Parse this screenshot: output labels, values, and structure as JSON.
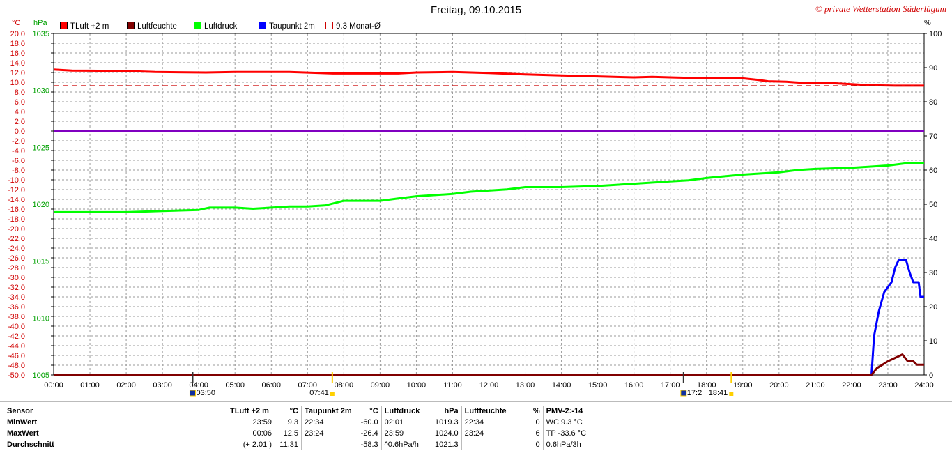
{
  "header": {
    "title": "Freitag, 09.10.2015",
    "copyright": "© private Wetterstation Süderlügum",
    "unit_celsius": "°C",
    "unit_hpa": "hPa",
    "unit_percent": "%"
  },
  "legend": [
    {
      "label": "TLuft +2 m",
      "color": "#ff0000",
      "style": "filled"
    },
    {
      "label": "Luftfeuchte",
      "color": "#800000",
      "style": "filled"
    },
    {
      "label": "Luftdruck",
      "color": "#00ff00",
      "style": "filled"
    },
    {
      "label": "Taupunkt 2m",
      "color": "#0000ff",
      "style": "filled"
    },
    {
      "label": "9.3 Monat-Ø",
      "color": "#cc0000",
      "style": "outline"
    }
  ],
  "chart_data": {
    "type": "line",
    "title": "Freitag, 09.10.2015",
    "grid": true,
    "x_ticks": [
      "00:00",
      "01:00",
      "02:00",
      "03:00",
      "04:00",
      "05:00",
      "06:00",
      "07:00",
      "08:00",
      "09:00",
      "10:00",
      "11:00",
      "12:00",
      "13:00",
      "14:00",
      "15:00",
      "16:00",
      "17:00",
      "18:00",
      "19:00",
      "20:00",
      "21:00",
      "22:00",
      "23:00",
      "24:00"
    ],
    "xlim_hours": [
      0,
      24
    ],
    "axes": {
      "celsius": {
        "unit": "°C",
        "ylim": [
          -50,
          20
        ],
        "ticks": [
          "20.0",
          "18.0",
          "16.0",
          "14.0",
          "12.0",
          "10.0",
          "8.0",
          "6.0",
          "4.0",
          "2.0",
          "0.0",
          "-2.0",
          "-4.0",
          "-6.0",
          "-8.0",
          "-10.0",
          "-12.0",
          "-14.0",
          "-16.0",
          "-18.0",
          "-20.0",
          "-22.0",
          "-24.0",
          "-26.0",
          "-28.0",
          "-30.0",
          "-32.0",
          "-34.0",
          "-36.0",
          "-38.0",
          "-40.0",
          "-42.0",
          "-44.0",
          "-46.0",
          "-48.0",
          "-50.0"
        ]
      },
      "hpa": {
        "unit": "hPa",
        "ylim": [
          1005,
          1035
        ],
        "ticks": [
          "1035",
          "1030",
          "1025",
          "1020",
          "1015",
          "1010",
          "1005"
        ]
      },
      "percent": {
        "unit": "%",
        "ylim": [
          0,
          100
        ],
        "ticks": [
          "100",
          "90",
          "80",
          "70",
          "60",
          "50",
          "40",
          "30",
          "20",
          "10",
          "0"
        ]
      }
    },
    "series": [
      {
        "name": "TLuft +2 m",
        "axis": "celsius",
        "color": "#ff0000",
        "points": [
          [
            0,
            12.6
          ],
          [
            0.5,
            12.4
          ],
          [
            2,
            12.3
          ],
          [
            2.8,
            12.1
          ],
          [
            4.2,
            12.0
          ],
          [
            5,
            12.1
          ],
          [
            6.5,
            12.1
          ],
          [
            7.7,
            11.8
          ],
          [
            9.5,
            11.8
          ],
          [
            10,
            12.0
          ],
          [
            11,
            12.1
          ],
          [
            12,
            11.9
          ],
          [
            13,
            11.6
          ],
          [
            14,
            11.4
          ],
          [
            15,
            11.2
          ],
          [
            16,
            11.0
          ],
          [
            16.5,
            11.1
          ],
          [
            17,
            11.0
          ],
          [
            18,
            10.8
          ],
          [
            19,
            10.8
          ],
          [
            19.4,
            10.5
          ],
          [
            19.7,
            10.2
          ],
          [
            20.2,
            10.1
          ],
          [
            20.6,
            9.9
          ],
          [
            21.5,
            9.8
          ],
          [
            22,
            9.6
          ],
          [
            22.5,
            9.4
          ],
          [
            23.2,
            9.3
          ],
          [
            24,
            9.3
          ]
        ]
      },
      {
        "name": "9.3 Monat-Ø",
        "axis": "celsius",
        "color": "#cc0000",
        "dashed": true,
        "points": [
          [
            0,
            9.3
          ],
          [
            24,
            9.3
          ]
        ]
      },
      {
        "name": "Luftdruck",
        "axis": "hpa",
        "color": "#00ff00",
        "points": [
          [
            0,
            1019.3
          ],
          [
            1,
            1019.3
          ],
          [
            2,
            1019.3
          ],
          [
            3,
            1019.4
          ],
          [
            4,
            1019.5
          ],
          [
            4.3,
            1019.7
          ],
          [
            5,
            1019.7
          ],
          [
            5.5,
            1019.6
          ],
          [
            6,
            1019.7
          ],
          [
            6.5,
            1019.8
          ],
          [
            7,
            1019.8
          ],
          [
            7.5,
            1019.9
          ],
          [
            8,
            1020.3
          ],
          [
            9,
            1020.3
          ],
          [
            9.5,
            1020.5
          ],
          [
            10,
            1020.7
          ],
          [
            11,
            1020.9
          ],
          [
            11.5,
            1021.1
          ],
          [
            12,
            1021.2
          ],
          [
            12.5,
            1021.3
          ],
          [
            13,
            1021.5
          ],
          [
            14,
            1021.5
          ],
          [
            15,
            1021.6
          ],
          [
            16,
            1021.8
          ],
          [
            17,
            1022.0
          ],
          [
            17.5,
            1022.1
          ],
          [
            18,
            1022.3
          ],
          [
            19,
            1022.6
          ],
          [
            20,
            1022.8
          ],
          [
            20.5,
            1023.0
          ],
          [
            21,
            1023.1
          ],
          [
            22,
            1023.2
          ],
          [
            22.5,
            1023.3
          ],
          [
            23,
            1023.4
          ],
          [
            23.5,
            1023.6
          ],
          [
            24,
            1023.6
          ]
        ]
      },
      {
        "name": "Taupunkt 2m",
        "axis": "celsius",
        "color": "#0000ff",
        "points": [
          [
            0,
            -50
          ],
          [
            22.55,
            -50
          ],
          [
            22.62,
            -42
          ],
          [
            22.75,
            -37
          ],
          [
            22.9,
            -33
          ],
          [
            23.1,
            -31
          ],
          [
            23.2,
            -28
          ],
          [
            23.3,
            -26.4
          ],
          [
            23.5,
            -26.4
          ],
          [
            23.6,
            -29
          ],
          [
            23.7,
            -31
          ],
          [
            23.85,
            -31
          ],
          [
            23.9,
            -34
          ],
          [
            24,
            -34
          ]
        ]
      },
      {
        "name": "Luftfeuchte",
        "axis": "percent",
        "color": "#800000",
        "points": [
          [
            0,
            0
          ],
          [
            22.55,
            0
          ],
          [
            22.7,
            2
          ],
          [
            22.85,
            3
          ],
          [
            23.0,
            4
          ],
          [
            23.2,
            5
          ],
          [
            23.4,
            6
          ],
          [
            23.55,
            4
          ],
          [
            23.7,
            4
          ],
          [
            23.8,
            3
          ],
          [
            23.9,
            3
          ],
          [
            24,
            3
          ]
        ]
      },
      {
        "name": "violet",
        "axis": "celsius",
        "color": "#8000c0",
        "points": [
          [
            0,
            0
          ],
          [
            24,
            0
          ]
        ]
      }
    ],
    "markers": [
      {
        "time": "03:50",
        "hour": 3.833,
        "label": "03:50",
        "type": "sunrise-icon"
      },
      {
        "time": "07:41",
        "hour": 7.683,
        "label": "07:41",
        "type": "sun-up"
      },
      {
        "time": "17:2",
        "hour": 17.367,
        "label": "17:2",
        "type": "moon-icon"
      },
      {
        "time": "18:41",
        "hour": 18.683,
        "label": "18:41",
        "type": "sun-down"
      }
    ]
  },
  "stats": {
    "headers": {
      "sensor": "Sensor",
      "tluft": "TLuft +2 m",
      "tluft_unit": "°C",
      "taupunkt": "Taupunkt 2m",
      "taupunkt_unit": "°C",
      "luftdruck": "Luftdruck",
      "luftdruck_unit": "hPa",
      "luftfeuchte": "Luftfeuchte",
      "luftfeuchte_unit": "%",
      "pmv": "PMV-2:-14"
    },
    "rows": [
      {
        "label": "MinWert",
        "t_time": "23:59",
        "t_val": "9.3",
        "tp_time": "22:34",
        "tp_val": "-60.0",
        "p_time": "02:01",
        "p_val": "1019.3",
        "h_time": "22:34",
        "h_val": "0",
        "extra": "WC 9.3 °C"
      },
      {
        "label": "MaxWert",
        "t_time": "00:06",
        "t_val": "12.5",
        "tp_time": "23:24",
        "tp_val": "-26.4",
        "p_time": "23:59",
        "p_val": "1024.0",
        "h_time": "23:24",
        "h_val": "6",
        "extra": "TP -33.6 °C"
      },
      {
        "label": "Durchschnitt",
        "t_time": "(+ 2.01 )",
        "t_val": "11.31",
        "tp_time": "",
        "tp_val": "-58.3",
        "p_time": "^0.6hPa/h",
        "p_val": "1021.3",
        "h_time": "",
        "h_val": "0",
        "extra": "0.6hPa/3h"
      }
    ]
  }
}
